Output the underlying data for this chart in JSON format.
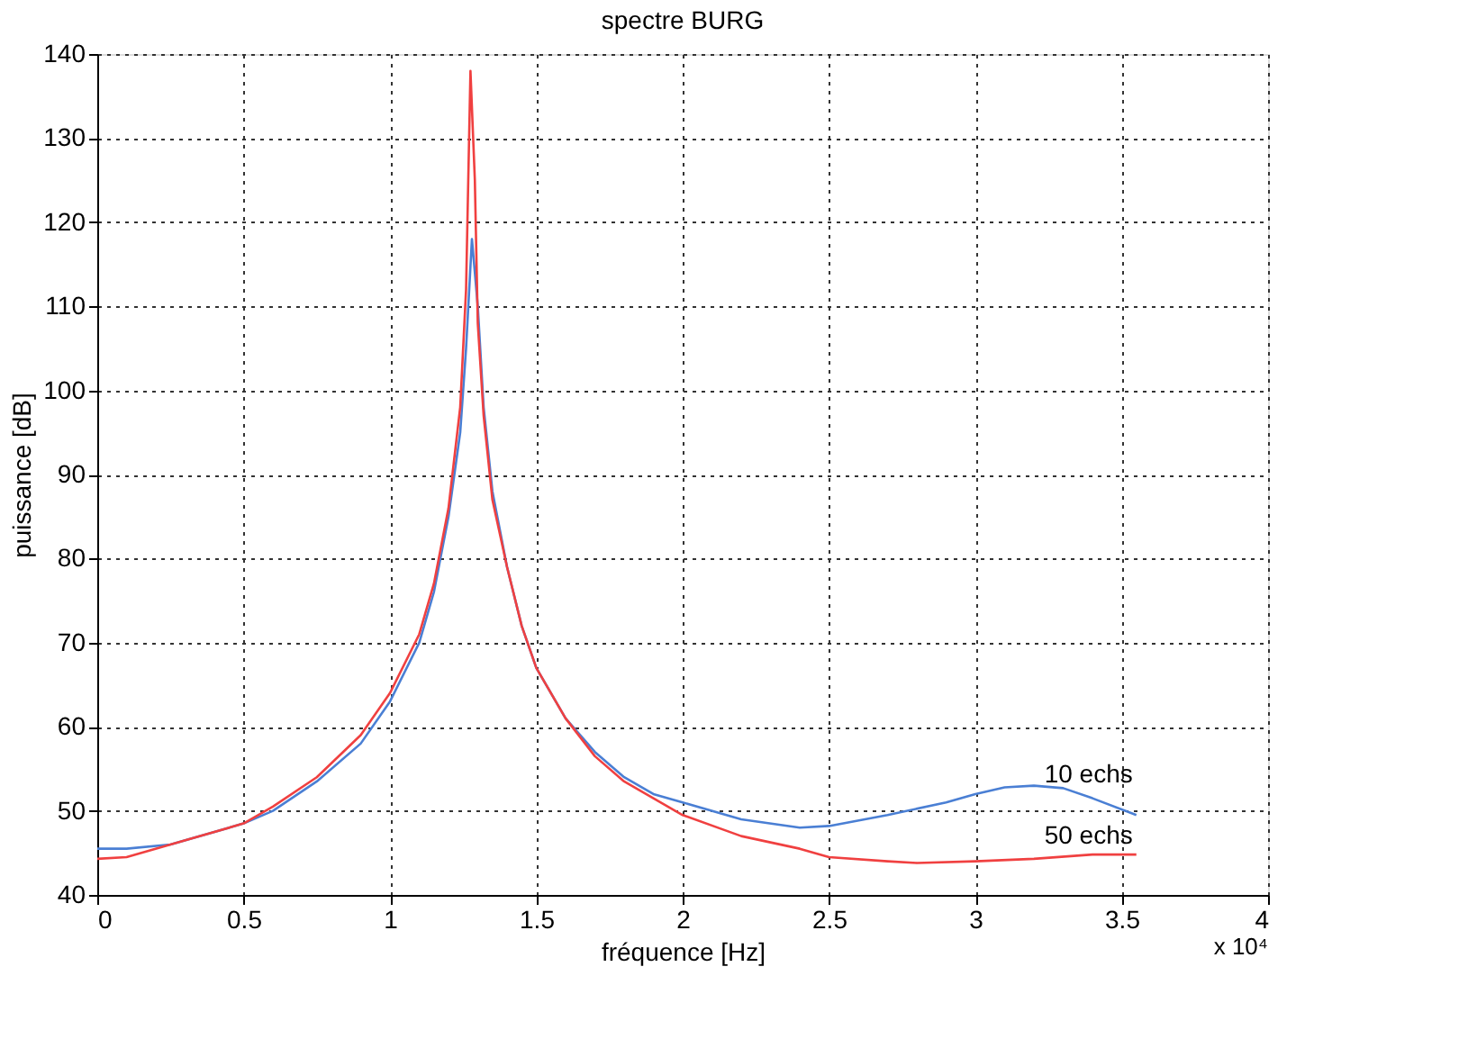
{
  "chart_data": {
    "type": "line",
    "title": "spectre BURG",
    "xlabel": "fréquence [Hz]",
    "ylabel": "puissance [dB]",
    "xlim": [
      0,
      4
    ],
    "xticks": [
      0,
      0.5,
      1,
      1.5,
      2,
      2.5,
      3,
      3.5,
      4
    ],
    "ylim": [
      40,
      140
    ],
    "yticks": [
      40,
      50,
      60,
      70,
      80,
      90,
      100,
      110,
      120,
      130,
      140
    ],
    "grid": true,
    "line_style": "solid",
    "marker": "none",
    "annotations": [
      "x 10⁴"
    ],
    "series": [
      {
        "name": "10 echs",
        "color": "#4a7fd4",
        "x": [
          0,
          0.1,
          0.25,
          0.5,
          0.6,
          0.75,
          0.9,
          1.0,
          1.1,
          1.15,
          1.2,
          1.24,
          1.26,
          1.28,
          1.3,
          1.32,
          1.35,
          1.4,
          1.45,
          1.5,
          1.6,
          1.7,
          1.8,
          1.9,
          2.0,
          2.2,
          2.4,
          2.5,
          2.7,
          2.9,
          3.0,
          3.1,
          3.2,
          3.3,
          3.4,
          3.55
        ],
        "values": [
          45.5,
          45.5,
          46,
          48.5,
          50,
          53.5,
          58,
          63,
          70,
          76,
          85,
          95,
          105,
          118,
          110,
          98,
          88,
          79,
          72,
          67,
          61,
          57,
          54,
          52,
          51,
          49,
          48,
          48.2,
          49.5,
          51,
          52,
          52.8,
          53,
          52.7,
          51.5,
          49.5
        ]
      },
      {
        "name": "50 echs",
        "color": "#f04040",
        "x": [
          0,
          0.1,
          0.25,
          0.5,
          0.6,
          0.75,
          0.9,
          1.0,
          1.1,
          1.15,
          1.2,
          1.24,
          1.26,
          1.275,
          1.29,
          1.3,
          1.32,
          1.35,
          1.4,
          1.45,
          1.5,
          1.6,
          1.7,
          1.8,
          1.9,
          2.0,
          2.2,
          2.4,
          2.5,
          2.7,
          2.8,
          3.0,
          3.2,
          3.4,
          3.55
        ],
        "values": [
          44.3,
          44.5,
          46,
          48.5,
          50.5,
          54,
          59,
          64,
          71,
          77,
          86,
          98,
          112,
          138,
          125,
          108,
          97,
          87,
          79,
          72,
          67,
          61,
          56.5,
          53.5,
          51.5,
          49.5,
          47,
          45.5,
          44.5,
          44,
          43.8,
          44,
          44.3,
          44.8,
          44.8
        ]
      }
    ]
  }
}
